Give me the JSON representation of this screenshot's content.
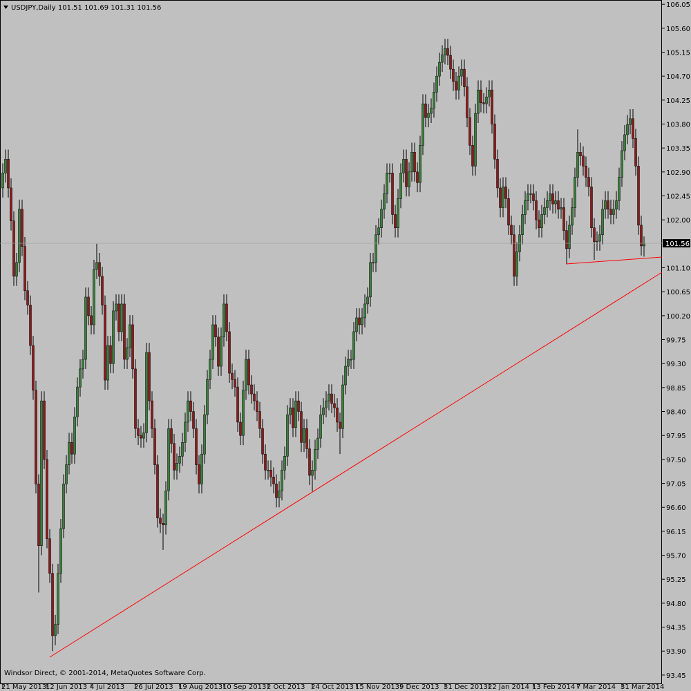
{
  "chart_data": {
    "type": "candlestick",
    "title": "USDJPY,Daily  101.51 101.69 101.31 101.56",
    "footer": "Windsor Direct, © 2001-2014, MetaQuotes Software Corp.",
    "up_color": "#3b7d3b",
    "down_color": "#8b1a1a",
    "ylim": [
      93.28,
      106.13
    ],
    "yticks": [
      106.05,
      {
        "value": 105.6,
        "label": "105.60"
      },
      105.15,
      {
        "value": 104.7,
        "label": "104.70"
      },
      104.25,
      {
        "value": 103.8,
        "label": "103.80"
      },
      103.35,
      {
        "value": 102.9,
        "label": "102.90"
      },
      102.45,
      {
        "value": 102,
        "label": "102.00"
      },
      {
        "value": 101.1,
        "label": "101.10"
      },
      100.65,
      {
        "value": 100.2,
        "label": "100.20"
      },
      99.75,
      {
        "value": 99.3,
        "label": "99.30"
      },
      98.85,
      {
        "value": 98.4,
        "label": "98.40"
      },
      97.95,
      {
        "value": 97.5,
        "label": "97.50"
      },
      97.05,
      {
        "value": 96.6,
        "label": "96.60"
      },
      96.15,
      {
        "value": 95.7,
        "label": "95.70"
      },
      95.25,
      {
        "value": 94.8,
        "label": "94.80"
      },
      94.35,
      {
        "value": 93.9,
        "label": "93.90"
      },
      93.45
    ],
    "categories": [
      "21 May 2013",
      null,
      null,
      null,
      null,
      null,
      null,
      null,
      null,
      null,
      null,
      null,
      null,
      null,
      null,
      null,
      "12 Jun 2013",
      null,
      null,
      null,
      null,
      null,
      null,
      null,
      null,
      null,
      null,
      null,
      null,
      null,
      null,
      null,
      "4 Jul 2013",
      null,
      null,
      null,
      null,
      null,
      null,
      null,
      null,
      null,
      null,
      null,
      null,
      null,
      null,
      null,
      "26 Jul 2013",
      null,
      null,
      null,
      null,
      null,
      null,
      null,
      null,
      null,
      null,
      null,
      null,
      null,
      null,
      null,
      "19 Aug 2013",
      null,
      null,
      null,
      null,
      null,
      null,
      null,
      null,
      null,
      null,
      null,
      null,
      null,
      null,
      null,
      "10 Sep 2013",
      null,
      null,
      null,
      null,
      null,
      null,
      null,
      null,
      null,
      null,
      null,
      null,
      null,
      null,
      null,
      "2 Oct 2013",
      null,
      null,
      null,
      null,
      null,
      null,
      null,
      null,
      null,
      null,
      null,
      null,
      null,
      null,
      null,
      "24 Oct 2013",
      null,
      null,
      null,
      null,
      null,
      null,
      null,
      null,
      null,
      null,
      null,
      null,
      null,
      null,
      null,
      "15 Nov 2013",
      null,
      null,
      null,
      null,
      null,
      null,
      null,
      null,
      null,
      null,
      null,
      null,
      null,
      null,
      null,
      "9 Dec 2013",
      null,
      null,
      null,
      null,
      null,
      null,
      null,
      null,
      null,
      null,
      null,
      null,
      null,
      null,
      null,
      "31 Dec 2013",
      null,
      null,
      null,
      null,
      null,
      null,
      null,
      null,
      null,
      null,
      null,
      null,
      null,
      null,
      null,
      "22 Jan 2014",
      null,
      null,
      null,
      null,
      null,
      null,
      null,
      null,
      null,
      null,
      null,
      null,
      null,
      null,
      null,
      "13 Feb 2014",
      null,
      null,
      null,
      null,
      null,
      null,
      null,
      null,
      null,
      null,
      null,
      null,
      null,
      null,
      null,
      "7 Mar 2014",
      null,
      null,
      null,
      null,
      null,
      null,
      null,
      null,
      null,
      null,
      null,
      null,
      null,
      null,
      null,
      "31 Mar 2014",
      null,
      null,
      null,
      null,
      null,
      null,
      null,
      null
    ],
    "open": [
      102.6,
      102.88,
      103.14,
      102.6,
      101.98,
      100.94,
      101.2,
      102.2,
      101.5,
      100.67,
      100.4,
      99.64,
      98.8,
      97.04,
      95.88,
      98.6,
      97.5,
      96.01,
      95.36,
      94.19,
      94.4,
      95.36,
      96.2,
      97.04,
      97.4,
      97.82,
      97.6,
      98.3,
      98.86,
      99.2,
      99.38,
      100.55,
      100.2,
      100.03,
      101.07,
      101.2,
      100.94,
      100.4,
      98.99,
      99.64,
      99.3,
      100.29,
      100.42,
      99.9,
      100.42,
      99.38,
      99.6,
      100.03,
      99.2,
      98.08,
      97.95,
      97.9,
      98.0,
      99.51,
      98.6,
      98.08,
      97.4,
      96.4,
      96.3,
      96.27,
      96.91,
      98.08,
      97.8,
      97.3,
      97.43,
      97.56,
      97.82,
      98.2,
      98.6,
      98.4,
      98.08,
      97.4,
      97.04,
      97.6,
      98.34,
      99.0,
      99.38,
      100.03,
      99.8,
      99.25,
      99.8,
      100.42,
      99.9,
      99.12,
      99.0,
      98.86,
      98.2,
      97.95,
      98.8,
      99.38,
      98.9,
      98.73,
      98.6,
      98.4,
      98.08,
      97.6,
      97.3,
      97.3,
      97.17,
      97.04,
      96.78,
      96.91,
      97.3,
      97.56,
      98.34,
      98.47,
      98.1,
      98.6,
      98.4,
      97.82,
      98.08,
      97.7,
      97.2,
      97.3,
      97.69,
      97.9,
      98.34,
      98.47,
      98.6,
      98.73,
      98.55,
      98.47,
      98.2,
      98.08,
      98.9,
      99.25,
      99.38,
      99.38,
      99.9,
      100.16,
      100.03,
      100.16,
      100.42,
      100.55,
      101.2,
      101.2,
      101.72,
      101.85,
      102.2,
      102.49,
      102.88,
      102.88,
      102.1,
      101.85,
      102.4,
      102.88,
      103.14,
      102.62,
      102.9,
      103.27,
      102.9,
      102.7,
      103.4,
      104.18,
      103.92,
      104.0,
      104.1,
      104.4,
      104.7,
      104.96,
      105.1,
      105.22,
      105.09,
      104.83,
      104.6,
      104.44,
      104.7,
      104.83,
      104.5,
      103.92,
      103.4,
      103.01,
      104.0,
      104.44,
      104.2,
      104.18,
      104.31,
      104.44,
      103.8,
      103.14,
      102.6,
      102.23,
      102.62,
      102.4,
      101.9,
      101.72,
      100.94,
      101.4,
      101.72,
      102.1,
      102.36,
      102.49,
      102.49,
      102.36,
      102.0,
      101.85,
      102.1,
      102.23,
      102.36,
      102.49,
      102.3,
      102.36,
      102.2,
      102.23,
      101.8,
      101.46,
      101.9,
      102.23,
      102.8,
      103.27,
      103.2,
      103.01,
      102.8,
      102.62,
      101.85,
      101.59,
      101.6,
      101.72,
      102.2,
      102.36,
      102.2,
      102.1,
      102.2,
      102.36,
      102.8,
      103.3,
      103.6,
      103.79,
      103.9,
      103.53,
      103.01,
      101.9,
      101.51
    ],
    "high": [
      103.06,
      103.32,
      103.32,
      102.78,
      102.16,
      101.38,
      102.38,
      102.38,
      101.68,
      100.85,
      100.58,
      99.82,
      98.98,
      97.22,
      98.78,
      98.78,
      97.68,
      96.19,
      95.54,
      94.58,
      95.54,
      96.38,
      97.22,
      97.58,
      98.0,
      98.0,
      98.48,
      99.04,
      99.38,
      99.56,
      100.73,
      100.73,
      100.38,
      101.25,
      101.55,
      101.38,
      101.12,
      100.58,
      99.82,
      99.82,
      100.47,
      100.6,
      100.6,
      100.6,
      100.6,
      99.78,
      100.21,
      100.21,
      99.38,
      98.26,
      98.13,
      98.18,
      99.69,
      99.69,
      98.78,
      98.26,
      97.58,
      96.58,
      96.48,
      97.09,
      98.26,
      98.26,
      97.98,
      97.61,
      97.74,
      98.0,
      98.38,
      98.78,
      98.78,
      98.58,
      98.26,
      97.58,
      97.78,
      98.52,
      99.18,
      99.56,
      100.21,
      100.21,
      99.98,
      99.98,
      100.6,
      100.6,
      100.08,
      99.3,
      99.18,
      99.04,
      98.38,
      98.98,
      99.56,
      99.56,
      99.08,
      98.91,
      98.78,
      98.58,
      98.26,
      97.78,
      97.48,
      97.48,
      97.35,
      97.22,
      97.09,
      97.48,
      97.74,
      98.52,
      98.65,
      98.65,
      98.78,
      98.78,
      98.58,
      98.26,
      98.26,
      97.88,
      97.48,
      97.87,
      98.08,
      98.52,
      98.65,
      98.78,
      98.91,
      98.91,
      98.73,
      98.65,
      98.38,
      99.08,
      99.43,
      99.56,
      99.56,
      100.08,
      100.34,
      100.34,
      100.34,
      100.6,
      100.73,
      101.38,
      101.38,
      101.9,
      102.03,
      102.38,
      102.67,
      103.06,
      103.06,
      103.06,
      102.28,
      102.58,
      103.06,
      103.32,
      103.32,
      103.08,
      103.45,
      103.45,
      103.08,
      103.58,
      104.36,
      104.36,
      104.18,
      104.28,
      104.58,
      104.88,
      105.14,
      105.28,
      105.4,
      105.4,
      105.27,
      105.01,
      104.78,
      104.88,
      105.01,
      105.01,
      104.68,
      104.1,
      103.58,
      104.18,
      104.62,
      104.62,
      104.38,
      104.49,
      104.62,
      104.62,
      103.98,
      103.32,
      102.78,
      102.8,
      102.8,
      102.58,
      102.08,
      101.9,
      101.58,
      101.9,
      102.28,
      102.54,
      102.67,
      102.67,
      102.67,
      102.54,
      102.18,
      102.28,
      102.41,
      102.54,
      102.67,
      102.67,
      102.54,
      102.54,
      102.41,
      102.41,
      101.98,
      102.08,
      102.41,
      102.98,
      103.7,
      103.45,
      103.38,
      103.19,
      102.98,
      102.8,
      102.03,
      101.78,
      101.9,
      102.38,
      102.54,
      102.54,
      102.38,
      102.38,
      102.54,
      102.98,
      103.48,
      103.78,
      103.97,
      104.08,
      104.08,
      103.71,
      103.19,
      102.08,
      101.69
    ],
    "low": [
      102.42,
      102.7,
      102.42,
      101.8,
      100.76,
      100.76,
      101.02,
      101.32,
      100.49,
      100.22,
      99.46,
      98.62,
      96.86,
      95.0,
      95.7,
      97.32,
      95.83,
      95.18,
      93.9,
      94.01,
      94.22,
      95.18,
      96.02,
      96.86,
      97.22,
      97.42,
      97.42,
      98.12,
      98.68,
      99.02,
      99.2,
      100.02,
      99.85,
      99.85,
      100.89,
      100.76,
      100.22,
      98.81,
      98.81,
      99.12,
      99.12,
      100.11,
      99.72,
      99.72,
      99.2,
      99.2,
      99.42,
      99.02,
      97.9,
      97.77,
      97.72,
      97.72,
      97.82,
      98.42,
      97.9,
      97.22,
      96.22,
      96.12,
      95.8,
      96.09,
      96.73,
      97.62,
      97.12,
      97.12,
      97.25,
      97.38,
      97.64,
      98.02,
      98.22,
      97.9,
      97.22,
      96.86,
      96.86,
      97.42,
      98.16,
      98.82,
      99.2,
      99.62,
      99.07,
      99.07,
      99.62,
      99.72,
      98.94,
      98.82,
      98.68,
      98.02,
      97.77,
      97.77,
      98.62,
      98.72,
      98.55,
      98.42,
      98.22,
      97.9,
      97.42,
      97.12,
      97.12,
      96.99,
      96.86,
      96.6,
      96.6,
      96.73,
      97.12,
      97.38,
      98.16,
      97.92,
      97.92,
      98.22,
      97.64,
      97.64,
      97.52,
      97.02,
      96.9,
      97.12,
      97.51,
      97.72,
      98.16,
      98.29,
      98.42,
      98.37,
      98.29,
      98.02,
      97.6,
      97.9,
      98.72,
      99.07,
      99.2,
      99.2,
      99.72,
      99.85,
      99.85,
      99.98,
      100.24,
      100.37,
      101.02,
      101.02,
      101.54,
      101.67,
      102.02,
      102.31,
      102.7,
      101.92,
      101.67,
      101.67,
      102.22,
      102.7,
      102.44,
      102.44,
      102.72,
      102.72,
      102.52,
      102.52,
      103.22,
      103.74,
      103.74,
      103.82,
      103.92,
      104.22,
      104.52,
      104.78,
      104.92,
      104.91,
      104.65,
      104.42,
      104.26,
      104.26,
      104.52,
      104.32,
      103.74,
      103.22,
      102.83,
      102.83,
      103.82,
      104.02,
      104.0,
      104.0,
      104.13,
      103.62,
      102.96,
      102.42,
      102.05,
      102.05,
      102.22,
      101.72,
      101.54,
      100.76,
      100.76,
      101.22,
      101.54,
      101.92,
      102.18,
      102.31,
      102.18,
      101.82,
      101.67,
      101.67,
      101.92,
      102.05,
      102.18,
      102.12,
      102.12,
      102.02,
      102.02,
      101.62,
      101.18,
      101.28,
      101.72,
      102.05,
      102.62,
      103.02,
      102.83,
      102.62,
      102.44,
      101.67,
      101.25,
      101.42,
      101.42,
      101.54,
      102.02,
      102.02,
      101.92,
      101.92,
      102.02,
      102.18,
      102.62,
      103.12,
      103.42,
      103.61,
      103.35,
      102.83,
      101.72,
      101.33,
      101.31
    ],
    "close": [
      102.88,
      103.14,
      102.6,
      101.98,
      100.94,
      101.2,
      102.2,
      101.5,
      100.67,
      100.4,
      99.64,
      98.8,
      97.04,
      95.88,
      98.6,
      97.5,
      96.01,
      95.36,
      94.19,
      94.4,
      95.36,
      96.2,
      97.04,
      97.4,
      97.82,
      97.6,
      98.3,
      98.86,
      99.2,
      99.38,
      100.55,
      100.2,
      100.03,
      101.07,
      101.2,
      100.94,
      100.4,
      98.99,
      99.64,
      99.3,
      100.29,
      100.42,
      99.9,
      100.42,
      99.38,
      99.6,
      100.03,
      99.2,
      98.08,
      97.95,
      97.9,
      98.0,
      99.51,
      98.6,
      98.08,
      97.4,
      96.4,
      96.3,
      96.27,
      96.91,
      98.08,
      97.8,
      97.3,
      97.43,
      97.56,
      97.82,
      98.2,
      98.6,
      98.4,
      98.08,
      97.4,
      97.04,
      97.6,
      98.34,
      99.0,
      99.38,
      100.03,
      99.8,
      99.25,
      99.8,
      100.42,
      99.9,
      99.12,
      99.0,
      98.86,
      98.2,
      97.95,
      98.8,
      99.38,
      98.9,
      98.73,
      98.6,
      98.4,
      98.08,
      97.6,
      97.3,
      97.3,
      97.17,
      97.04,
      96.78,
      96.91,
      97.3,
      97.56,
      98.34,
      98.47,
      98.1,
      98.6,
      98.4,
      97.82,
      98.08,
      97.7,
      97.2,
      97.3,
      97.69,
      97.9,
      98.34,
      98.47,
      98.6,
      98.73,
      98.55,
      98.47,
      98.2,
      98.08,
      98.9,
      99.25,
      99.38,
      99.38,
      99.9,
      100.16,
      100.03,
      100.16,
      100.42,
      100.55,
      101.2,
      101.2,
      101.72,
      101.85,
      102.2,
      102.49,
      102.88,
      102.88,
      102.1,
      101.85,
      102.4,
      102.88,
      103.14,
      102.62,
      102.9,
      103.27,
      102.9,
      102.7,
      103.4,
      104.18,
      103.92,
      104.0,
      104.1,
      104.4,
      104.7,
      104.96,
      105.1,
      105.22,
      105.09,
      104.83,
      104.6,
      104.44,
      104.7,
      104.83,
      104.5,
      103.92,
      103.4,
      103.01,
      104.0,
      104.44,
      104.2,
      104.18,
      104.31,
      104.44,
      103.8,
      103.14,
      102.6,
      102.23,
      102.62,
      102.4,
      101.9,
      101.72,
      100.94,
      101.4,
      101.72,
      102.1,
      102.36,
      102.49,
      102.49,
      102.36,
      102.0,
      101.85,
      102.1,
      102.23,
      102.36,
      102.49,
      102.3,
      102.36,
      102.2,
      102.23,
      101.8,
      101.46,
      101.9,
      102.23,
      102.8,
      103.27,
      103.2,
      103.01,
      102.8,
      102.62,
      101.85,
      101.59,
      101.6,
      101.72,
      102.2,
      102.36,
      102.2,
      102.1,
      102.2,
      102.36,
      102.8,
      103.3,
      103.6,
      103.79,
      103.9,
      103.53,
      103.01,
      101.9,
      101.51,
      101.56
    ]
  }
}
